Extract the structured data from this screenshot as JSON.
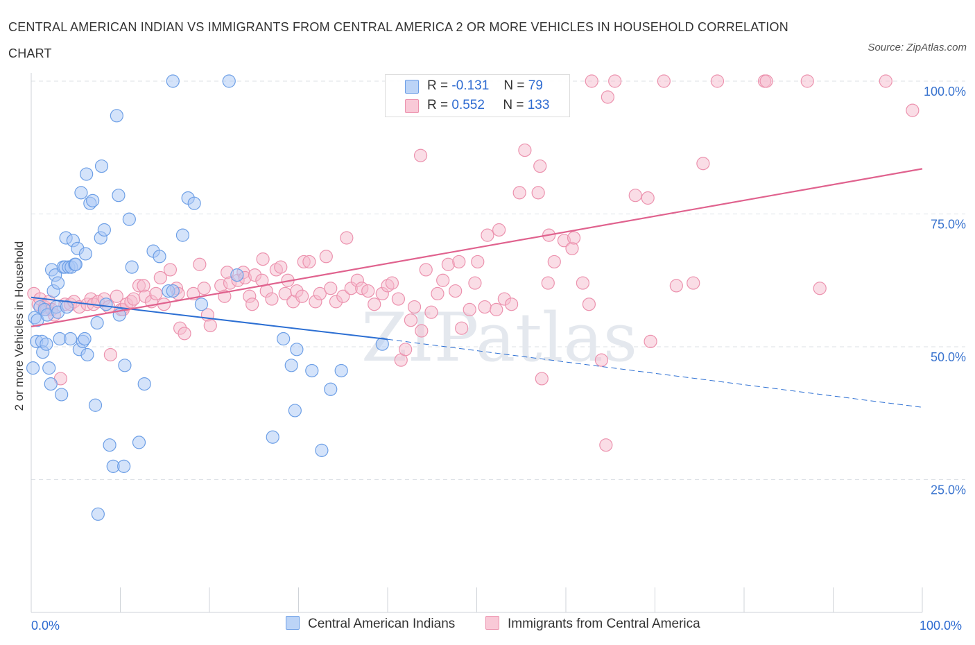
{
  "title": "CENTRAL AMERICAN INDIAN VS IMMIGRANTS FROM CENTRAL AMERICA 2 OR MORE VEHICLES IN HOUSEHOLD CORRELATION CHART",
  "source": "Source: ZipAtlas.com",
  "watermark": "ZIPatlas",
  "colors": {
    "blue_fill": "#a9c8f5",
    "blue_stroke": "#6d9fe6",
    "blue_line": "#2c6fd3",
    "pink_fill": "#f6bccd",
    "pink_stroke": "#ec92ae",
    "pink_line": "#e0628e",
    "tick_text": "#3a74cf"
  },
  "legend": {
    "rows": [
      {
        "r_label": "R =",
        "r_value": "-0.131",
        "n_label": "N =",
        "n_value": "79"
      },
      {
        "r_label": "R =",
        "r_value": "0.552",
        "n_label": "N =",
        "n_value": "133"
      }
    ]
  },
  "bottom_legend": [
    "Central American Indians",
    "Immigrants from Central America"
  ],
  "chart_data": {
    "type": "scatter",
    "title": "CENTRAL AMERICAN INDIAN VS IMMIGRANTS FROM CENTRAL AMERICA 2 OR MORE VEHICLES IN HOUSEHOLD CORRELATION CHART",
    "xlabel": "",
    "ylabel": "2 or more Vehicles in Household",
    "xlim": [
      0,
      100
    ],
    "ylim": [
      0,
      100
    ],
    "x_tick_labels": [
      "0.0%",
      "100.0%"
    ],
    "y_tick_labels": [
      "25.0%",
      "50.0%",
      "75.0%",
      "100.0%"
    ],
    "y_ticks": [
      25,
      50,
      75,
      100
    ],
    "grid": true,
    "legend_placement": "top-center",
    "series": [
      {
        "name": "Central American Indians",
        "r": -0.131,
        "n": 79,
        "trend": {
          "x0": 0,
          "y0": 59.3,
          "x1": 40,
          "y1": 51.4,
          "dash_to_x": 100,
          "dash_to_y": 38.6
        },
        "points": [
          [
            0.2,
            46
          ],
          [
            0.4,
            55.5
          ],
          [
            0.6,
            51
          ],
          [
            0.7,
            55
          ],
          [
            1,
            57.5
          ],
          [
            1.2,
            51
          ],
          [
            1.3,
            49
          ],
          [
            1.5,
            57
          ],
          [
            1.7,
            50.5
          ],
          [
            1.8,
            56
          ],
          [
            2,
            46
          ],
          [
            2.2,
            43
          ],
          [
            2.3,
            64.5
          ],
          [
            2.5,
            60.5
          ],
          [
            2.7,
            63.5
          ],
          [
            2.8,
            57.5
          ],
          [
            3,
            62
          ],
          [
            3,
            56.5
          ],
          [
            3.2,
            51.5
          ],
          [
            3.4,
            41
          ],
          [
            3.6,
            65
          ],
          [
            3.8,
            65
          ],
          [
            3.9,
            70.5
          ],
          [
            4,
            57.5
          ],
          [
            4.2,
            65
          ],
          [
            4.4,
            51.5
          ],
          [
            4.5,
            65
          ],
          [
            4.7,
            70
          ],
          [
            4.9,
            65.5
          ],
          [
            5,
            65.5
          ],
          [
            5.2,
            68.5
          ],
          [
            5.4,
            49.5
          ],
          [
            5.6,
            79
          ],
          [
            5.8,
            51
          ],
          [
            6,
            51.5
          ],
          [
            6.1,
            67.5
          ],
          [
            6.2,
            82.5
          ],
          [
            6.3,
            48.5
          ],
          [
            6.6,
            77
          ],
          [
            6.9,
            77.5
          ],
          [
            7.2,
            39
          ],
          [
            7.4,
            54.5
          ],
          [
            7.5,
            18.5
          ],
          [
            7.8,
            70.5
          ],
          [
            7.9,
            84
          ],
          [
            8.2,
            72
          ],
          [
            8.4,
            58
          ],
          [
            8.8,
            31.5
          ],
          [
            9.2,
            27.5
          ],
          [
            9.6,
            93.5
          ],
          [
            9.8,
            78.5
          ],
          [
            9.9,
            56
          ],
          [
            10.4,
            27.5
          ],
          [
            10.5,
            46.5
          ],
          [
            11,
            74
          ],
          [
            11.3,
            65
          ],
          [
            12.1,
            32
          ],
          [
            12.7,
            43
          ],
          [
            13.7,
            68
          ],
          [
            14.4,
            67
          ],
          [
            15.4,
            60.5
          ],
          [
            15.9,
            60.5
          ],
          [
            15.9,
            100
          ],
          [
            17,
            71
          ],
          [
            17.6,
            78
          ],
          [
            18.3,
            77
          ],
          [
            19.1,
            58
          ],
          [
            22.2,
            100
          ],
          [
            23.1,
            63.5
          ],
          [
            27.1,
            33
          ],
          [
            28.3,
            51.5
          ],
          [
            29.2,
            46.5
          ],
          [
            29.6,
            38
          ],
          [
            29.8,
            49.5
          ],
          [
            31.5,
            45.5
          ],
          [
            32.6,
            30.5
          ],
          [
            33.6,
            42
          ],
          [
            34.8,
            45.5
          ],
          [
            39.4,
            50.5
          ]
        ]
      },
      {
        "name": "Immigrants from Central America",
        "r": 0.552,
        "n": 133,
        "trend": {
          "x0": 0,
          "y0": 53.8,
          "x1": 100,
          "y1": 83.5
        },
        "points": [
          [
            0.3,
            60
          ],
          [
            0.8,
            58
          ],
          [
            1,
            59
          ],
          [
            1.5,
            57.5
          ],
          [
            1.7,
            57
          ],
          [
            2,
            58.5
          ],
          [
            2.3,
            57
          ],
          [
            2.6,
            56
          ],
          [
            3.3,
            44
          ],
          [
            3.8,
            58
          ],
          [
            4.4,
            58
          ],
          [
            4.8,
            58.5
          ],
          [
            5.4,
            57.5
          ],
          [
            6.3,
            58
          ],
          [
            6.7,
            59
          ],
          [
            7,
            58
          ],
          [
            7.5,
            58.5
          ],
          [
            8.2,
            59
          ],
          [
            8.7,
            57.5
          ],
          [
            8.9,
            48.5
          ],
          [
            9.6,
            59.5
          ],
          [
            10.1,
            57
          ],
          [
            10.3,
            57
          ],
          [
            10.7,
            58
          ],
          [
            11.2,
            58.5
          ],
          [
            11.5,
            59
          ],
          [
            12.1,
            61.5
          ],
          [
            12.6,
            61.5
          ],
          [
            12.8,
            59.5
          ],
          [
            13.5,
            58.5
          ],
          [
            14,
            60
          ],
          [
            14.5,
            63
          ],
          [
            14.9,
            58
          ],
          [
            15.6,
            64.5
          ],
          [
            16.3,
            61
          ],
          [
            16.5,
            60
          ],
          [
            16.7,
            53.5
          ],
          [
            17.2,
            52.5
          ],
          [
            18.2,
            60
          ],
          [
            18.9,
            65.5
          ],
          [
            19.4,
            61
          ],
          [
            19.8,
            56
          ],
          [
            20.1,
            54
          ],
          [
            21.3,
            61.5
          ],
          [
            21.7,
            59.5
          ],
          [
            22,
            64
          ],
          [
            22.3,
            62
          ],
          [
            23.2,
            62.5
          ],
          [
            23.8,
            64
          ],
          [
            24,
            63
          ],
          [
            24.5,
            59.5
          ],
          [
            24.8,
            58
          ],
          [
            25.1,
            63.5
          ],
          [
            25.9,
            62.5
          ],
          [
            26,
            66.5
          ],
          [
            26.4,
            60.5
          ],
          [
            27,
            59
          ],
          [
            27.5,
            64.5
          ],
          [
            28,
            65
          ],
          [
            28.5,
            60
          ],
          [
            28.8,
            62.5
          ],
          [
            29.4,
            58.5
          ],
          [
            29.8,
            60.5
          ],
          [
            30.4,
            59.5
          ],
          [
            30.6,
            66
          ],
          [
            31.2,
            66
          ],
          [
            31.9,
            58.5
          ],
          [
            32.4,
            60
          ],
          [
            33.1,
            67
          ],
          [
            33.6,
            61
          ],
          [
            34.2,
            58.5
          ],
          [
            35,
            59.5
          ],
          [
            35.4,
            70.5
          ],
          [
            35.9,
            61
          ],
          [
            36.6,
            62.5
          ],
          [
            37.1,
            61
          ],
          [
            37.8,
            60.5
          ],
          [
            38.5,
            58
          ],
          [
            39.4,
            60
          ],
          [
            40,
            61.5
          ],
          [
            40.5,
            62
          ],
          [
            41.2,
            59
          ],
          [
            41.5,
            47.5
          ],
          [
            42,
            49.5
          ],
          [
            42.6,
            55
          ],
          [
            43,
            57.5
          ],
          [
            43.7,
            86
          ],
          [
            43.8,
            53
          ],
          [
            44.3,
            64.5
          ],
          [
            44.9,
            56.5
          ],
          [
            45.6,
            60
          ],
          [
            46.2,
            62.5
          ],
          [
            46.8,
            65.5
          ],
          [
            47.6,
            60.5
          ],
          [
            48,
            66
          ],
          [
            48.3,
            53.5
          ],
          [
            49.2,
            57
          ],
          [
            49.8,
            62
          ],
          [
            50.1,
            66
          ],
          [
            50.9,
            57.5
          ],
          [
            51.2,
            71
          ],
          [
            52.2,
            57
          ],
          [
            52.5,
            72
          ],
          [
            53.1,
            59
          ],
          [
            53.9,
            58
          ],
          [
            54.8,
            79
          ],
          [
            55.4,
            87
          ],
          [
            56.9,
            79
          ],
          [
            57.1,
            84
          ],
          [
            57.3,
            44
          ],
          [
            58,
            62
          ],
          [
            58.1,
            71
          ],
          [
            58.7,
            66
          ],
          [
            59.8,
            70
          ],
          [
            60.7,
            68.5
          ],
          [
            60.9,
            70.5
          ],
          [
            61.9,
            62
          ],
          [
            62.6,
            58
          ],
          [
            62.9,
            100
          ],
          [
            64,
            47.5
          ],
          [
            64.5,
            31.5
          ],
          [
            64.7,
            97
          ],
          [
            65.5,
            100
          ],
          [
            67.8,
            78.5
          ],
          [
            69.2,
            78
          ],
          [
            69.5,
            51
          ],
          [
            71,
            100
          ],
          [
            72.4,
            61.5
          ],
          [
            74.3,
            62
          ],
          [
            75.4,
            84.5
          ],
          [
            77,
            100
          ],
          [
            82.3,
            100
          ],
          [
            82.5,
            100
          ],
          [
            87.1,
            100
          ],
          [
            88.5,
            61
          ],
          [
            95.9,
            100
          ],
          [
            98.9,
            94.5
          ]
        ]
      }
    ]
  }
}
